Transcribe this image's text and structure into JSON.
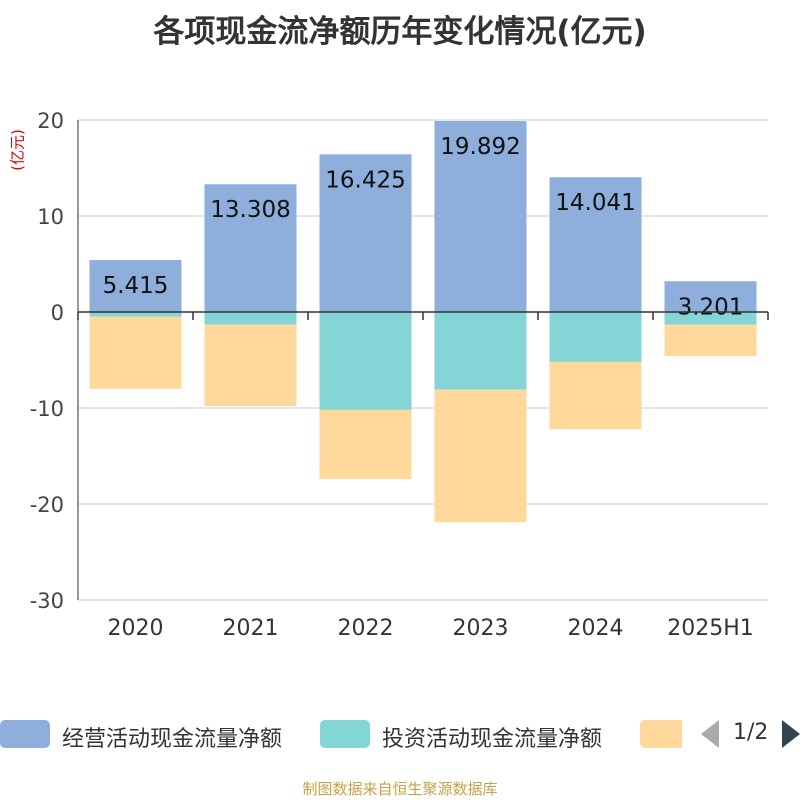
{
  "title": "各项现金流净额历年变化情况(亿元)",
  "unit_label": "(亿元)",
  "source": "制图数据来自恒生聚源数据库",
  "legend": {
    "items": [
      {
        "label": "经营活动现金流量净额",
        "color": "#8eaedb"
      },
      {
        "label": "投资活动现金流量净额",
        "color": "#84d5d6"
      },
      {
        "label": "",
        "color": "#fed99b"
      }
    ],
    "page": "1/2"
  },
  "chart_data": {
    "type": "bar",
    "stacked": true,
    "categories": [
      "2020",
      "2021",
      "2022",
      "2023",
      "2024",
      "2025H1"
    ],
    "series": [
      {
        "name": "经营活动现金流量净额",
        "color": "#8eaedb",
        "values": [
          5.415,
          13.308,
          16.425,
          19.892,
          14.041,
          3.201
        ]
      },
      {
        "name": "投资活动现金流量净额",
        "color": "#84d5d6",
        "values": [
          -0.5,
          -1.3,
          -10.2,
          -8.1,
          -5.2,
          -1.3
        ]
      },
      {
        "name": "",
        "color": "#fed99b",
        "values": [
          -7.5,
          -8.5,
          -7.2,
          -13.8,
          -7.0,
          -3.3
        ]
      }
    ],
    "data_labels": [
      "5.415",
      "13.308",
      "16.425",
      "19.892",
      "14.041",
      "3.201"
    ],
    "ylim": [
      -30,
      20
    ],
    "yticks": [
      "-30",
      "-20",
      "-10",
      "0",
      "10",
      "20"
    ],
    "grid": true,
    "legend_position": "bottom"
  }
}
